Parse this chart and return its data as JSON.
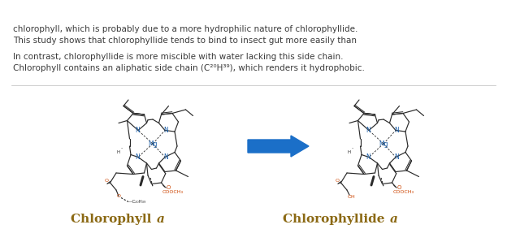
{
  "background_color": "#ffffff",
  "label_left_normal": "Chlorophyll ",
  "label_left_italic": "a",
  "label_right_normal": "Chlorophyllide ",
  "label_right_italic": "a",
  "label_color": "#8B6914",
  "arrow_color": "#1b6fc8",
  "bond_color": "#2a2a2a",
  "N_color": "#1a5faa",
  "Mg_color": "#1a5faa",
  "O_color": "#cc4400",
  "text_color": "#3a3a3a",
  "text_fontsize": 7.5,
  "label_fontsize": 11,
  "text_line1": "Chlorophyll contains an aliphatic side chain (C²⁰H³⁹), which renders it hydrophobic.",
  "text_line2": "In contrast, chlorophyllide is more miscible with water lacking this side chain.",
  "text_line3": "This study shows that chlorophyllide tends to bind to insect gut more easily than",
  "text_line4": "chlorophyll, which is probably due to a more hydrophilic nature of chlorophyllide."
}
